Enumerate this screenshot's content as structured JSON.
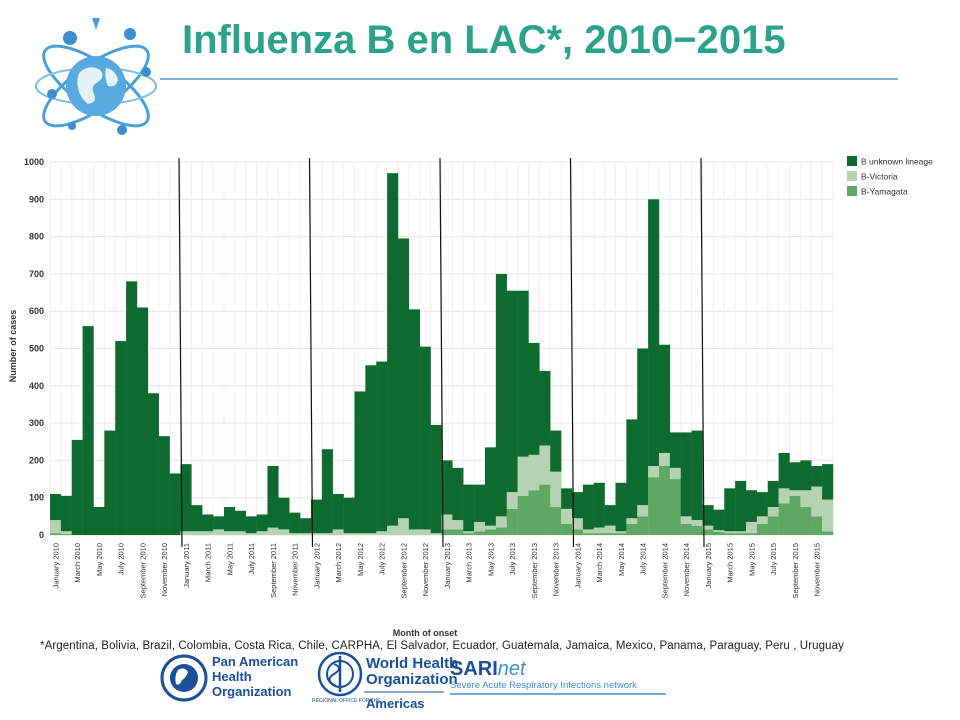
{
  "title": "Influenza B en LAC*, 2010−2015",
  "footnote": "*Argentina, Bolivia, Brazil, Colombia, Costa Rica, Chile, CARPHA, El Salvador, Ecuador, Guatemala, Jamaica, Mexico, Panama, Paraguay, Peru , Uruguay",
  "logos": {
    "paho": [
      "Pan American",
      "Health",
      "Organization"
    ],
    "who": [
      "World Health",
      "Organization"
    ],
    "who_sub": "REGIONAL OFFICE FOR THE",
    "who_region": "Americas",
    "sari": "SARI",
    "sari_net": "net",
    "sari_sub": "Severe Acute Respiratory Infections network"
  },
  "colors": {
    "title": "#2ba38b",
    "unknown": "#0d6b2f",
    "victoria": "#b5d3b2",
    "yamagata": "#5fa863"
  },
  "chart_data": {
    "type": "bar",
    "stacked": true,
    "xlabel": "Month of onset",
    "ylabel": "Number of cases",
    "ylim": [
      0,
      1000
    ],
    "yticks": [
      0,
      100,
      200,
      300,
      400,
      500,
      600,
      700,
      800,
      900,
      1000
    ],
    "grid": true,
    "legend_position": "top-right",
    "year_dividers_before": [
      "January 2011",
      "January 2012",
      "January 2013",
      "January 2014",
      "January 2015"
    ],
    "categories": [
      "January 2010",
      "February 2010",
      "March 2010",
      "April 2010",
      "May 2010",
      "June 2010",
      "July 2010",
      "August 2010",
      "September 2010",
      "October 2010",
      "November 2010",
      "December 2010",
      "January 2011",
      "February 2011",
      "March 2011",
      "April 2011",
      "May 2011",
      "June 2011",
      "July 2011",
      "August 2011",
      "September 2011",
      "October 2011",
      "November 2011",
      "December 2011",
      "January 2012",
      "February 2012",
      "March 2012",
      "April 2012",
      "May 2012",
      "June 2012",
      "July 2012",
      "August 2012",
      "September 2012",
      "October 2012",
      "November 2012",
      "December 2012",
      "January 2013",
      "February 2013",
      "March 2013",
      "April 2013",
      "May 2013",
      "June 2013",
      "July 2013",
      "August 2013",
      "September 2013",
      "October 2013",
      "November 2013",
      "December 2013",
      "January 2014",
      "February 2014",
      "March 2014",
      "April 2014",
      "May 2014",
      "June 2014",
      "July 2014",
      "August 2014",
      "September 2014",
      "October 2014",
      "November 2014",
      "December 2014",
      "January 2015",
      "February 2015",
      "March 2015",
      "April 2015",
      "May 2015",
      "June 2015",
      "July 2015",
      "August 2015",
      "September 2015",
      "October 2015",
      "November 2015",
      "December 2015"
    ],
    "tick_labels": [
      "January 2010",
      "March 2010",
      "May 2010",
      "July 2010",
      "September 2010",
      "November 2010",
      "January 2011",
      "March 2011",
      "May 2011",
      "July 2011",
      "September 2011",
      "November 2011",
      "January 2012",
      "March 2012",
      "May 2012",
      "July 2012",
      "September 2012",
      "November 2012",
      "January 2013",
      "March 2013",
      "May 2013",
      "July 2013",
      "September 2013",
      "November 2013",
      "January 2014",
      "March 2014",
      "May 2014",
      "July 2014",
      "September 2014",
      "November 2014",
      "January 2015",
      "March 2015",
      "May 2015",
      "July 2015",
      "September 2015",
      "November 2015"
    ],
    "series": [
      {
        "name": "B-Yamagata",
        "color": "#5fa863",
        "values": [
          5,
          3,
          0,
          0,
          0,
          0,
          0,
          0,
          0,
          0,
          0,
          0,
          0,
          0,
          0,
          0,
          0,
          0,
          0,
          0,
          0,
          0,
          0,
          0,
          0,
          0,
          0,
          0,
          0,
          0,
          0,
          0,
          0,
          0,
          0,
          0,
          15,
          15,
          5,
          10,
          15,
          20,
          70,
          105,
          120,
          135,
          75,
          30,
          15,
          5,
          5,
          5,
          5,
          30,
          50,
          155,
          185,
          150,
          30,
          25,
          15,
          8,
          5,
          5,
          5,
          30,
          50,
          85,
          105,
          75,
          50,
          10
        ]
      },
      {
        "name": "B-Victoria",
        "color": "#b5d3b2",
        "values": [
          35,
          7,
          0,
          0,
          0,
          0,
          0,
          0,
          0,
          0,
          0,
          0,
          10,
          10,
          10,
          15,
          10,
          10,
          5,
          10,
          20,
          15,
          5,
          5,
          5,
          5,
          15,
          5,
          5,
          5,
          10,
          25,
          45,
          15,
          15,
          5,
          40,
          25,
          5,
          25,
          10,
          30,
          45,
          105,
          95,
          105,
          95,
          40,
          30,
          10,
          15,
          20,
          5,
          15,
          30,
          30,
          35,
          30,
          20,
          15,
          10,
          5,
          5,
          5,
          30,
          20,
          25,
          40,
          15,
          45,
          80,
          85
        ]
      },
      {
        "name": "B unknown lineage",
        "color": "#0d6b2f",
        "values": [
          70,
          95,
          255,
          560,
          75,
          280,
          520,
          680,
          610,
          380,
          265,
          165,
          180,
          70,
          45,
          35,
          65,
          55,
          45,
          45,
          165,
          85,
          55,
          40,
          90,
          225,
          95,
          95,
          380,
          450,
          455,
          945,
          750,
          590,
          490,
          290,
          145,
          140,
          125,
          100,
          210,
          650,
          540,
          445,
          300,
          200,
          110,
          55,
          70,
          120,
          120,
          55,
          130,
          265,
          420,
          715,
          290,
          95,
          225,
          240,
          55,
          55,
          115,
          135,
          85,
          65,
          70,
          95,
          75,
          80,
          55,
          95
        ]
      }
    ]
  }
}
